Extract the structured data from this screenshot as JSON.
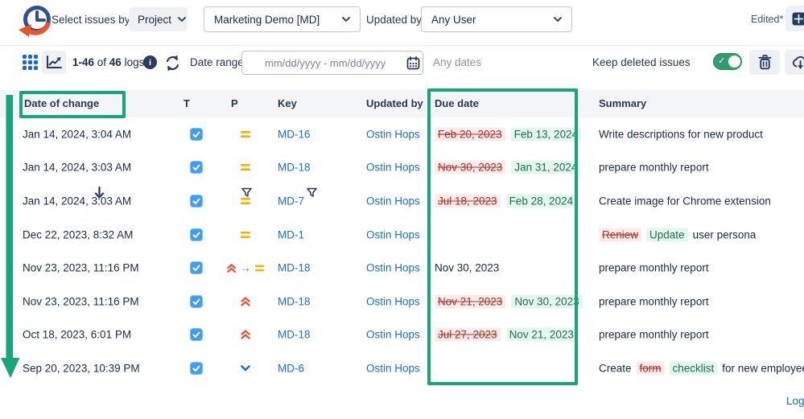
{
  "colors": {
    "annotation_green": "#17a57a",
    "link_blue": "#1a6ed8",
    "removed_red": "#ae2e24",
    "removed_bg": "#fdecea",
    "added_green": "#216e4e",
    "added_bg": "#e3f7ee",
    "toggle_green": "#2e9f6c",
    "priority_medium_orange": "#ffab00",
    "priority_high_red": "#e5543f",
    "priority_low_blue": "#1d6ae5",
    "navy": "#243b66"
  },
  "topbar": {
    "logo_icon": "issue-history-clock-logo",
    "select_issues_by": "Select issues by:",
    "select_by_value": "Project",
    "project_value": "Marketing Demo [MD]",
    "updated_by_label": "Updated by:",
    "user_value": "Any User",
    "edited_label": "Edited*"
  },
  "toolbar": {
    "range": "1-46",
    "of_label": " of ",
    "total": "46",
    "logs_label": " logs",
    "date_range_label": "Date range:",
    "date_range_placeholder": "mm/dd/yyyy - mm/dd/yyyy",
    "any_dates_label": "Any dates",
    "keep_deleted_label": "Keep deleted issues",
    "keep_deleted_on": true
  },
  "table": {
    "columns": {
      "date_of_change": "Date of change",
      "type": "T",
      "priority": "P",
      "key": "Key",
      "updated_by": "Updated by",
      "due_date": "Due date",
      "summary": "Summary"
    },
    "sort": {
      "column": "date_of_change",
      "direction": "desc"
    },
    "rows": [
      {
        "date": "Jan 14, 2024, 3:04 AM",
        "type": "task",
        "priority": [
          "medium"
        ],
        "key": "MD-16",
        "updated_by": "Ostin Hops",
        "due": {
          "old": "Feb 20, 2023",
          "new": "Feb 13, 2024"
        },
        "summary": [
          {
            "kind": "text",
            "text": "Write descriptions for new product"
          }
        ]
      },
      {
        "date": "Jan 14, 2024, 3:03 AM",
        "type": "task",
        "priority": [
          "medium"
        ],
        "key": "MD-18",
        "updated_by": "Ostin Hops",
        "due": {
          "old": "Nov 30, 2023",
          "new": "Jan 31, 2024"
        },
        "summary": [
          {
            "kind": "text",
            "text": "prepare monthly report"
          }
        ]
      },
      {
        "date": "Jan 14, 2024, 3:03 AM",
        "type": "task",
        "priority": [
          "medium"
        ],
        "key": "MD-7",
        "updated_by": "Ostin Hops",
        "due": {
          "old": "Jul 18, 2023",
          "new": "Feb 28, 2024"
        },
        "summary": [
          {
            "kind": "text",
            "text": "Create image for Chrome extension"
          }
        ]
      },
      {
        "date": "Dec 22, 2023, 8:32 AM",
        "type": "task",
        "priority": [
          "medium"
        ],
        "key": "MD-1",
        "updated_by": "Ostin Hops",
        "due": {},
        "summary": [
          {
            "kind": "removed",
            "text": "Reniew"
          },
          {
            "kind": "added",
            "text": "Update"
          },
          {
            "kind": "text",
            "text": "user persona"
          }
        ]
      },
      {
        "date": "Nov 23, 2023, 11:16 PM",
        "type": "task",
        "priority": [
          "high",
          "arrow",
          "medium"
        ],
        "key": "MD-18",
        "updated_by": "Ostin Hops",
        "due": {
          "plain": "Nov 30, 2023"
        },
        "summary": [
          {
            "kind": "text",
            "text": "prepare monthly report"
          }
        ]
      },
      {
        "date": "Nov 23, 2023, 11:16 PM",
        "type": "task",
        "priority": [
          "high"
        ],
        "key": "MD-18",
        "updated_by": "Ostin Hops",
        "due": {
          "old": "Nov 21, 2023",
          "new": "Nov 30, 2023"
        },
        "summary": [
          {
            "kind": "text",
            "text": "prepare monthly report"
          }
        ]
      },
      {
        "date": "Oct 18, 2023, 6:01 PM",
        "type": "task",
        "priority": [
          "high"
        ],
        "key": "MD-18",
        "updated_by": "Ostin Hops",
        "due": {
          "old": "Jul 27, 2023",
          "new": "Nov 21, 2023"
        },
        "summary": [
          {
            "kind": "text",
            "text": "prepare monthly report"
          }
        ]
      },
      {
        "date": "Sep 20, 2023, 10:39 PM",
        "type": "task",
        "priority": [
          "low"
        ],
        "key": "MD-6",
        "updated_by": "Ostin Hops",
        "due": {},
        "summary": [
          {
            "kind": "text",
            "text": "Create"
          },
          {
            "kind": "removed",
            "text": "form"
          },
          {
            "kind": "added",
            "text": "checklist"
          },
          {
            "kind": "text",
            "text": "for new employees"
          }
        ]
      }
    ]
  },
  "footer": {
    "logs_label": "Logs"
  }
}
